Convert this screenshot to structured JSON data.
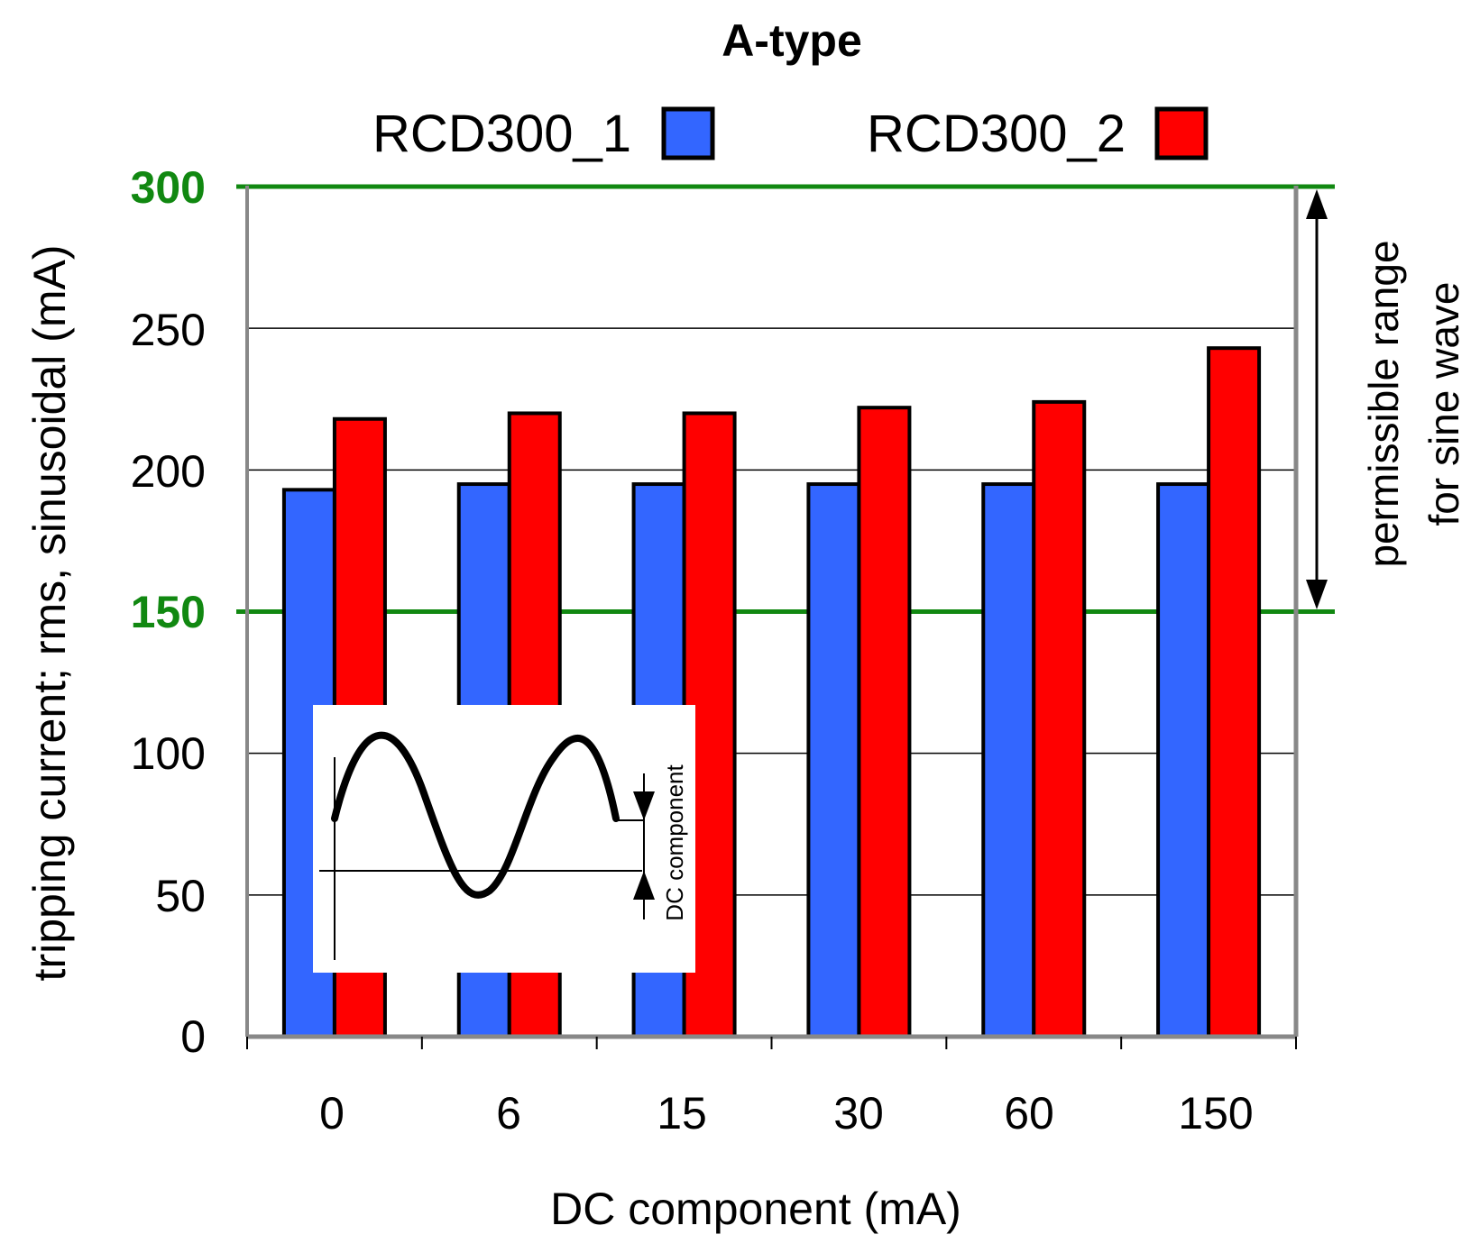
{
  "chart_data": {
    "type": "bar",
    "title": "A-type",
    "xlabel": "DC component (mA)",
    "ylabel": "tripping current; rms, sinusoidal (mA)",
    "categories": [
      "0",
      "6",
      "15",
      "30",
      "60",
      "150"
    ],
    "series": [
      {
        "name": "RCD300_1",
        "color": "#3366ff",
        "values": [
          193,
          195,
          195,
          195,
          195,
          195
        ]
      },
      {
        "name": "RCD300_2",
        "color": "#ff0000",
        "values": [
          218,
          220,
          220,
          222,
          224,
          243
        ]
      }
    ],
    "ylim": [
      0,
      300
    ],
    "yticks": [
      "0",
      "50",
      "100",
      "150",
      "200",
      "250",
      "300"
    ],
    "highlighted_ticks": [
      "150",
      "300"
    ],
    "reference_lines": [
      {
        "value": 150,
        "color": "#118811"
      },
      {
        "value": 300,
        "color": "#118811"
      }
    ],
    "range_annotation": {
      "line1": "permissible range",
      "line2": "for sine wave",
      "from": 150,
      "to": 300
    },
    "inset": {
      "label": "DC component"
    },
    "grid": true,
    "legend_position": "top"
  }
}
